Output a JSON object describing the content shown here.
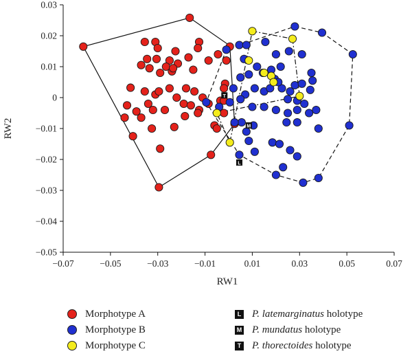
{
  "chart_data": {
    "type": "scatter",
    "xlabel": "RW1",
    "ylabel": "RW2",
    "xlim": [
      -0.07,
      0.07
    ],
    "ylim": [
      -0.05,
      0.03
    ],
    "xticks": [
      -0.07,
      -0.05,
      -0.03,
      -0.01,
      0.01,
      0.03,
      0.05,
      0.07
    ],
    "yticks": [
      0.03,
      0.02,
      0.01,
      0,
      -0.01,
      -0.02,
      -0.03,
      -0.04,
      -0.05
    ],
    "xtick_labels": [
      "−0.07",
      "−0.05",
      "−0.03",
      "−0.01",
      "0.01",
      "0.03",
      "0.05",
      "0.07"
    ],
    "ytick_labels": [
      "0.03",
      "0.02",
      "0.01",
      "0",
      "−0.01",
      "−0.02",
      "−0.03",
      "−0.04",
      "−0.05"
    ],
    "series": [
      {
        "name": "Morphotype A",
        "color": "#e4221b",
        "hull_style": "solid",
        "hull": [
          [
            -0.0615,
            0.0165
          ],
          [
            -0.0165,
            0.0258
          ],
          [
            0.0005,
            0.0168
          ],
          [
            0.0025,
            -0.0085
          ],
          [
            -0.0075,
            -0.0185
          ],
          [
            -0.0295,
            -0.029
          ]
        ],
        "points": [
          [
            -0.0615,
            0.0165
          ],
          [
            -0.0165,
            0.0258
          ],
          [
            -0.0125,
            0.018
          ],
          [
            -0.013,
            0.016
          ],
          [
            -0.0045,
            0.014
          ],
          [
            -0.001,
            0.012
          ],
          [
            0.0005,
            0.0165
          ],
          [
            -0.0355,
            0.018
          ],
          [
            -0.031,
            0.018
          ],
          [
            -0.03,
            0.016
          ],
          [
            -0.0225,
            0.015
          ],
          [
            -0.025,
            0.012
          ],
          [
            -0.024,
            0.0085
          ],
          [
            -0.0215,
            0.011
          ],
          [
            -0.017,
            0.013
          ],
          [
            -0.015,
            0.009
          ],
          [
            -0.0085,
            0.012
          ],
          [
            -0.0345,
            0.0125
          ],
          [
            -0.037,
            0.0105
          ],
          [
            -0.0335,
            0.0095
          ],
          [
            -0.0305,
            0.0125
          ],
          [
            -0.029,
            0.008
          ],
          [
            -0.0265,
            0.01
          ],
          [
            -0.0235,
            0.0095
          ],
          [
            -0.0415,
            0.0032
          ],
          [
            -0.0355,
            0.002
          ],
          [
            -0.031,
            0.001
          ],
          [
            -0.0295,
            0.002
          ],
          [
            -0.025,
            0.003
          ],
          [
            -0.022,
            0.0
          ],
          [
            -0.018,
            0.003
          ],
          [
            -0.0145,
            0.002
          ],
          [
            -0.043,
            -0.0025
          ],
          [
            -0.039,
            -0.0045
          ],
          [
            -0.034,
            -0.002
          ],
          [
            -0.032,
            -0.004
          ],
          [
            -0.027,
            -0.004
          ],
          [
            -0.019,
            -0.002
          ],
          [
            -0.016,
            -0.0025
          ],
          [
            -0.0125,
            -0.004
          ],
          [
            -0.0085,
            -0.002
          ],
          [
            -0.0035,
            -0.001
          ],
          [
            -0.002,
            -0.001
          ],
          [
            -0.044,
            -0.0065
          ],
          [
            -0.0405,
            -0.0125
          ],
          [
            -0.037,
            -0.0065
          ],
          [
            -0.0325,
            -0.01
          ],
          [
            -0.029,
            -0.0165
          ],
          [
            -0.023,
            -0.0095
          ],
          [
            -0.0185,
            -0.006
          ],
          [
            -0.013,
            -0.005
          ],
          [
            -0.006,
            -0.009
          ],
          [
            -0.005,
            -0.01
          ],
          [
            -0.002,
            -0.005
          ],
          [
            0.0025,
            -0.0085
          ],
          [
            -0.0075,
            -0.0185
          ],
          [
            -0.0295,
            -0.029
          ],
          [
            -0.011,
            0.0
          ],
          [
            -0.0015,
            0.0045
          ],
          [
            -0.002,
            0.003
          ]
        ]
      },
      {
        "name": "Morphotype B",
        "color": "#2030d0",
        "hull_style": "dashed",
        "hull": [
          [
            0.028,
            0.023
          ],
          [
            0.0395,
            0.021
          ],
          [
            0.0525,
            0.014
          ],
          [
            0.051,
            -0.009
          ],
          [
            0.038,
            -0.026
          ],
          [
            0.0315,
            -0.0275
          ],
          [
            0.02,
            -0.025
          ],
          [
            0.0045,
            -0.0185
          ],
          [
            -0.0095,
            -0.0015
          ],
          [
            -0.001,
            0.0155
          ]
        ],
        "points": [
          [
            0.028,
            0.023
          ],
          [
            0.0395,
            0.021
          ],
          [
            0.0525,
            0.014
          ],
          [
            0.051,
            -0.009
          ],
          [
            0.038,
            -0.026
          ],
          [
            0.0315,
            -0.0275
          ],
          [
            0.02,
            -0.025
          ],
          [
            0.0045,
            -0.0185
          ],
          [
            -0.0095,
            -0.0015
          ],
          [
            -0.001,
            0.0155
          ],
          [
            0.0045,
            0.017
          ],
          [
            0.0075,
            0.017
          ],
          [
            0.0155,
            0.018
          ],
          [
            0.02,
            0.014
          ],
          [
            0.0255,
            0.015
          ],
          [
            0.031,
            0.014
          ],
          [
            0.0065,
            0.0125
          ],
          [
            0.012,
            0.01
          ],
          [
            0.018,
            0.009
          ],
          [
            0.022,
            0.01
          ],
          [
            0.035,
            0.008
          ],
          [
            0.0355,
            0.0055
          ],
          [
            0.005,
            0.0065
          ],
          [
            0.0085,
            0.0075
          ],
          [
            0.0145,
            0.008
          ],
          [
            0.0195,
            0.006
          ],
          [
            0.0225,
            0.003
          ],
          [
            0.026,
            0.002
          ],
          [
            0.028,
            0.004
          ],
          [
            0.031,
            0.0045
          ],
          [
            0.0345,
            0.0025
          ],
          [
            0.002,
            0.003
          ],
          [
            0.007,
            0.001
          ],
          [
            0.011,
            0.003
          ],
          [
            0.015,
            0.002
          ],
          [
            0.0175,
            0.003
          ],
          [
            0.021,
            0.005
          ],
          [
            0.025,
            -0.0005
          ],
          [
            0.029,
            -0.001
          ],
          [
            0.032,
            -0.002
          ],
          [
            0.0005,
            -0.0015
          ],
          [
            0.005,
            -0.0005
          ],
          [
            0.01,
            -0.003
          ],
          [
            0.015,
            -0.003
          ],
          [
            0.02,
            -0.004
          ],
          [
            0.025,
            -0.005
          ],
          [
            0.029,
            -0.004
          ],
          [
            0.034,
            -0.005
          ],
          [
            0.0055,
            -0.008
          ],
          [
            0.0105,
            -0.009
          ],
          [
            0.0245,
            -0.008
          ],
          [
            0.029,
            -0.008
          ],
          [
            0.037,
            -0.004
          ],
          [
            0.038,
            -0.01
          ],
          [
            0.0085,
            -0.014
          ],
          [
            0.011,
            -0.0175
          ],
          [
            0.0185,
            -0.0145
          ],
          [
            0.0215,
            -0.015
          ],
          [
            0.026,
            -0.017
          ],
          [
            0.029,
            -0.019
          ],
          [
            0.023,
            -0.0225
          ],
          [
            0.0025,
            -0.008
          ],
          [
            -0.004,
            -0.003
          ],
          [
            0.0075,
            -0.011
          ]
        ]
      },
      {
        "name": "Morphotype C",
        "color": "#f4ec1c",
        "hull_style": "dashdot",
        "hull": [
          [
            0.01,
            0.0215
          ],
          [
            0.027,
            0.019
          ],
          [
            0.03,
            0.0005
          ],
          [
            -0.005,
            -0.005
          ],
          [
            0.0005,
            -0.0145
          ]
        ],
        "points": [
          [
            0.01,
            0.0215
          ],
          [
            0.027,
            0.019
          ],
          [
            0.015,
            0.008
          ],
          [
            0.018,
            0.007
          ],
          [
            0.019,
            0.005
          ],
          [
            0.03,
            0.0005
          ],
          [
            -0.005,
            -0.005
          ],
          [
            0.0005,
            -0.0145
          ],
          [
            0.0085,
            0.012
          ]
        ]
      }
    ],
    "holotypes": [
      {
        "symbol": "L",
        "name": "P. latemarginatus",
        "suffix": "holotype",
        "x": 0.0045,
        "y": -0.021
      },
      {
        "symbol": "M",
        "name": "P. mundatus",
        "suffix": "holotype",
        "x": 0.0085,
        "y": -0.009
      },
      {
        "symbol": "T",
        "name": "P. thorectoides",
        "suffix": "holotype",
        "x": -0.0018,
        "y": 0.0007
      }
    ],
    "legend_placement": "bottom",
    "grid": false
  }
}
